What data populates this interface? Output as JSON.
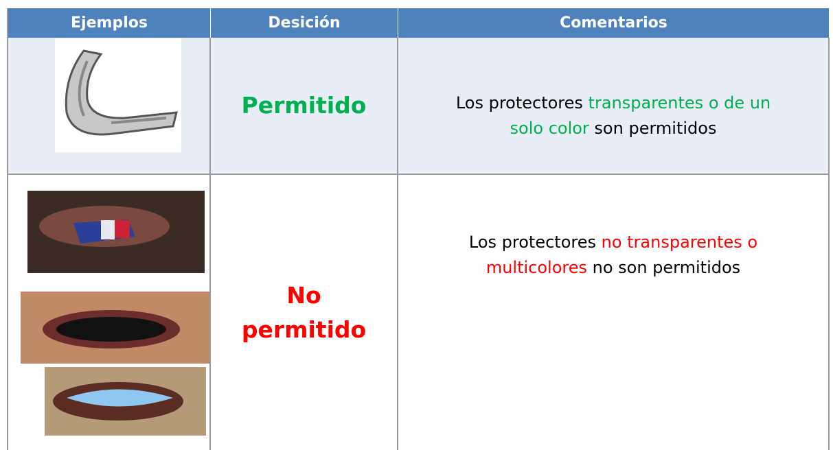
{
  "table": {
    "header": [
      "Ejemplos",
      "Desición",
      "Comentarios"
    ],
    "rows": [
      {
        "decision": "Permitido",
        "decision_color": "#00b050",
        "comment": [
          {
            "text": "Los protectores ",
            "color": "#000000"
          },
          {
            "text": "transparentes o de un solo color",
            "color": "#00b050"
          },
          {
            "text": " son permitidos",
            "color": "#000000"
          }
        ]
      },
      {
        "decision": "No permitido",
        "decision_color": "#ff0000",
        "comment": [
          {
            "text": "Los protectores ",
            "color": "#000000"
          },
          {
            "text": "no transparentes o multicolores",
            "color": "#ff0000"
          },
          {
            "text": " no son permitidos",
            "color": "#000000"
          }
        ]
      }
    ]
  }
}
